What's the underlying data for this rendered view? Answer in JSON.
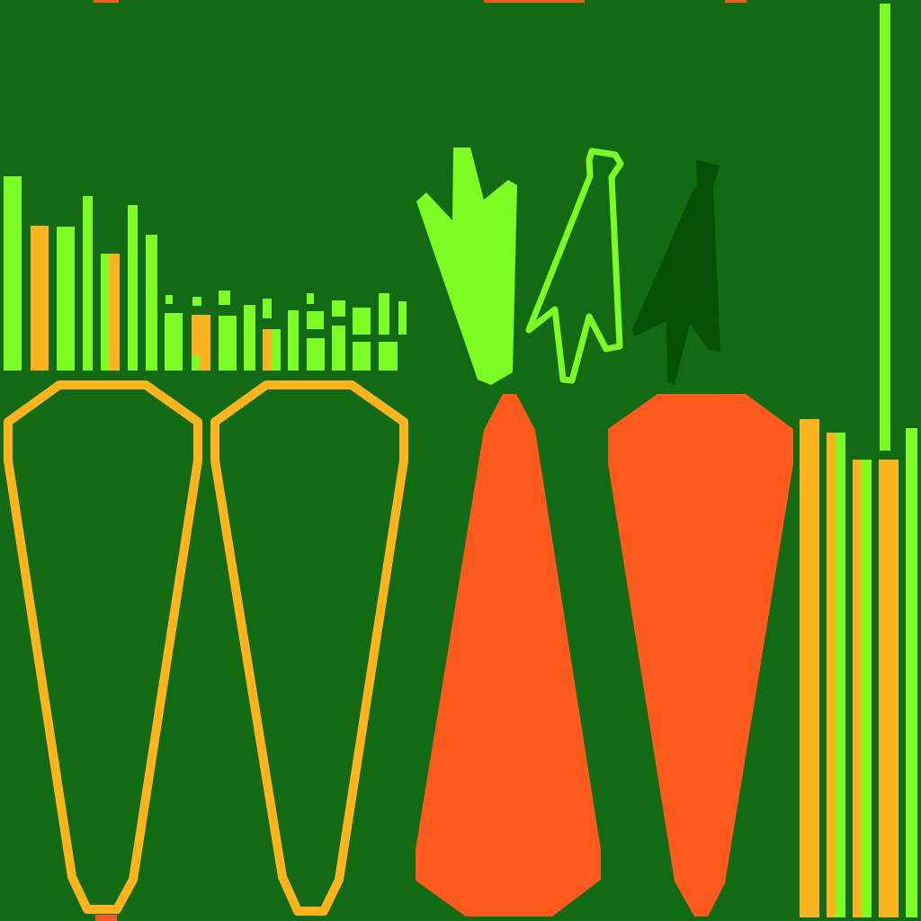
{
  "colors": {
    "background": "#126b12",
    "leaf_light": "#7cfc22",
    "leaf_dark": "#045004",
    "carrot_orange": "#ff5a1e",
    "carrot_yellow": "#ffb41e"
  },
  "icons": [
    "carrot-outline-icon",
    "carrot-outline-icon",
    "carrot-solid-icon",
    "carrot-solid-icon",
    "leaf-solid-icon",
    "leaf-outline-icon",
    "leaf-dark-icon"
  ]
}
